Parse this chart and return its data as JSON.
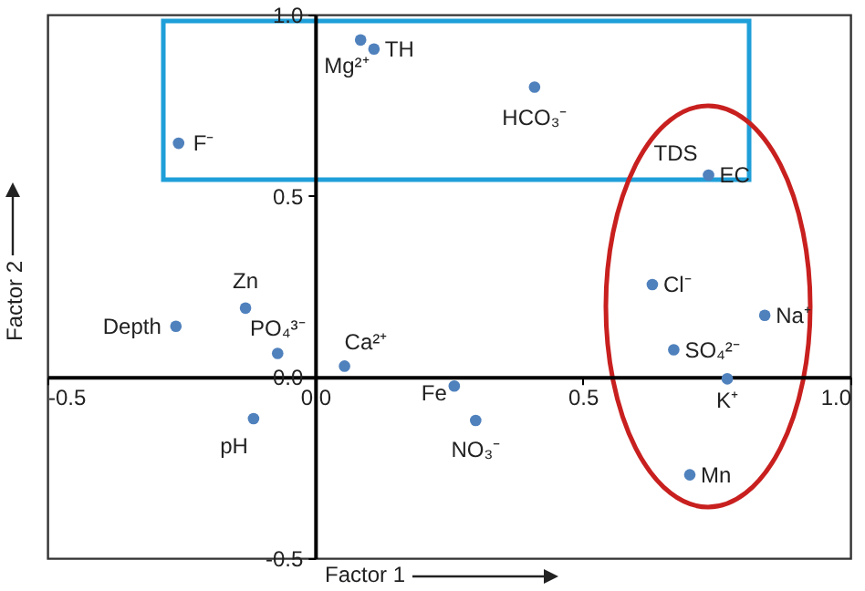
{
  "chart_data": {
    "type": "scatter",
    "xlabel": "Factor 1",
    "ylabel": "Factor 2",
    "xlim": [
      -0.5,
      1.0
    ],
    "ylim": [
      -0.5,
      1.0
    ],
    "xticks": [
      -0.5,
      {
        "value": 0,
        "label": "0.0"
      },
      0.5,
      {
        "value": 1,
        "label": "1.0"
      }
    ],
    "yticks": [
      -0.5,
      {
        "value": 0,
        "label": "0.0"
      },
      0.5,
      {
        "value": 1,
        "label": "1.0"
      }
    ],
    "grid": false,
    "marker": "circle",
    "series": [
      {
        "color": "#4f81bd",
        "x": [
          0.085,
          0.11,
          -0.255,
          0.41,
          0.735,
          -0.26,
          -0.13,
          -0.07,
          0.055,
          -0.115,
          0.26,
          0.3,
          0.63,
          0.84,
          0.67,
          0.77,
          0.7
        ],
        "values": [
          0.93,
          0.905,
          0.645,
          0.8,
          0.557,
          0.14,
          0.19,
          0.065,
          0.03,
          -0.115,
          -0.025,
          -0.12,
          0.255,
          0.17,
          0.075,
          -0.005,
          -0.27
        ]
      }
    ],
    "annotations": [
      {
        "text": "Mg²⁺",
        "x": 0.085,
        "y": 0.93
      },
      {
        "text": "TH",
        "x": 0.11,
        "y": 0.905
      },
      {
        "text": "F⁻",
        "x": -0.255,
        "y": 0.645
      },
      {
        "text": "HCO₃⁻",
        "x": 0.41,
        "y": 0.8
      },
      {
        "text": "TDS",
        "x": 0.735,
        "y": 0.557
      },
      {
        "text": "EC",
        "x": 0.735,
        "y": 0.557
      },
      {
        "text": "Depth",
        "x": -0.26,
        "y": 0.14
      },
      {
        "text": "Zn",
        "x": -0.13,
        "y": 0.19
      },
      {
        "text": "PO₄³⁻",
        "x": -0.07,
        "y": 0.065
      },
      {
        "text": "Ca²⁺",
        "x": 0.055,
        "y": 0.03
      },
      {
        "text": "pH",
        "x": -0.115,
        "y": -0.115
      },
      {
        "text": "Fe",
        "x": 0.26,
        "y": -0.025
      },
      {
        "text": "NO₃⁻",
        "x": 0.3,
        "y": -0.12
      },
      {
        "text": "Cl⁻",
        "x": 0.63,
        "y": 0.255
      },
      {
        "text": "Na⁺",
        "x": 0.84,
        "y": 0.17
      },
      {
        "text": "SO₄²⁻",
        "x": 0.67,
        "y": 0.075
      },
      {
        "text": "K⁺",
        "x": 0.77,
        "y": -0.005
      },
      {
        "text": "Mn",
        "x": 0.7,
        "y": -0.27
      }
    ]
  }
}
